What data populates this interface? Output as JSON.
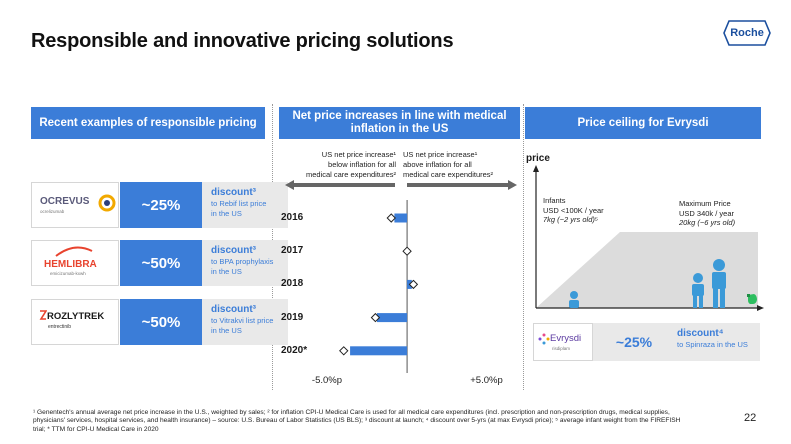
{
  "slide": {
    "title": "Responsible and innovative pricing solutions",
    "logo_text": "Roche",
    "page_number": "22"
  },
  "left_panel": {
    "header": "Recent examples of responsible pricing",
    "examples": [
      {
        "brand": "OCREVUS",
        "brand_sub": "ocrelizumab",
        "pct": "~25%",
        "title": "discount³",
        "desc_lines": [
          "to Rebif list price",
          "in the US"
        ]
      },
      {
        "brand": "HEMLIBRA",
        "brand_sub": "emicizumab-kxwh",
        "pct": "~50%",
        "title": "discount³",
        "desc_lines": [
          "to BPA prophylaxis",
          "in the US"
        ]
      },
      {
        "brand": "ROZLYTREK",
        "brand_sub": "entrectinib",
        "pct": "~50%",
        "title": "discount³",
        "desc_lines": [
          "to Vitrakvi list price",
          "in the US"
        ]
      }
    ]
  },
  "middle_panel": {
    "header_line1": "Net price increases in line with medical",
    "header_line2": "inflation in the US",
    "caption_left": [
      "US net price increase¹",
      "below inflation for all",
      "medical care expenditures²"
    ],
    "caption_right": [
      "US net price increase¹",
      "above inflation for all",
      "medical care expenditures²"
    ]
  },
  "chart_data": {
    "type": "bar",
    "orientation": "horizontal",
    "categories": [
      "2016",
      "2017",
      "2018",
      "2019",
      "2020*"
    ],
    "series": [
      {
        "values": [
          -0.8,
          0.0,
          0.3,
          -1.9,
          -3.6
        ]
      }
    ],
    "markers": [
      -1.0,
      0.0,
      0.4,
      -2.0,
      -4.0
    ],
    "x_ticks": [
      "-5.0%p",
      "+5.0%p"
    ],
    "x_tick_values": [
      -5,
      5
    ],
    "xlim": [
      -5.5,
      6.5
    ],
    "colors": {
      "bar": "#3b7dd8",
      "axis": "#555555"
    }
  },
  "right_panel": {
    "header": "Price ceiling for Evrysdi",
    "axis_label": "price",
    "infants_lines": [
      "Infants",
      "USD <100K / year"
    ],
    "infants_italic": "7kg (~2 yrs old)⁵",
    "max_lines": [
      "Maximum Price",
      "USD 340k / year"
    ],
    "max_italic": "20kg (~6 yrs old)",
    "brand": "Evrysdi",
    "brand_sub": "risdiplam",
    "pct": "~25%",
    "discount_title": "discount⁴",
    "discount_desc": "to Spinraza in the US"
  },
  "footnote": {
    "lines": [
      "¹ Genentech's annual average net price increase in the U.S., weighted by sales; ² for inflation CPI-U Medical Care is used for all medical care expenditures (incl. prescription and non-prescription drugs, medical supplies,",
      "physicians' services, hospital services, and health insurance) – source: U.S. Bureau of Labor Statistics (US BLS); ³ discount at launch; ⁴ discount over 5-yrs (at max Evrysdi price); ⁵ average infant weight from the FIREFISH",
      "trial; * TTM for CPI-U Medical Care in 2020"
    ]
  },
  "colors": {
    "accent": "#3b7dd8",
    "panel_gray": "#e9e9e9",
    "roche_blue": "#1b4f9e"
  }
}
